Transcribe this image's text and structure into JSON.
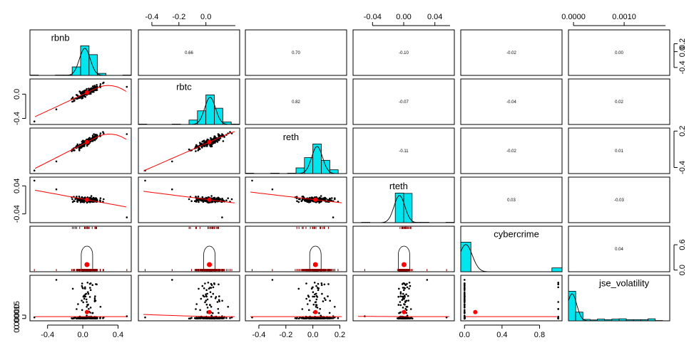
{
  "chart_data": {
    "type": "scatter",
    "subtype": "pairs-panels (scatterplot matrix)",
    "variables": [
      "rbnb",
      "rbtc",
      "reth",
      "rteth",
      "cybercrime",
      "jse_volatility"
    ],
    "correlations_upper": [
      {
        "row": "rbnb",
        "col": "rbtc",
        "r": "0.66"
      },
      {
        "row": "rbnb",
        "col": "reth",
        "r": "0.70"
      },
      {
        "row": "rbnb",
        "col": "rteth",
        "r": "-0.10"
      },
      {
        "row": "rbnb",
        "col": "cybercrime",
        "r": "-0.02"
      },
      {
        "row": "rbnb",
        "col": "jse_volatility",
        "r": "0.00"
      },
      {
        "row": "rbtc",
        "col": "reth",
        "r": "0.82"
      },
      {
        "row": "rbtc",
        "col": "rteth",
        "r": "-0.07"
      },
      {
        "row": "rbtc",
        "col": "cybercrime",
        "r": "-0.04"
      },
      {
        "row": "rbtc",
        "col": "jse_volatility",
        "r": "0.02"
      },
      {
        "row": "reth",
        "col": "rteth",
        "r": "-0.11"
      },
      {
        "row": "reth",
        "col": "cybercrime",
        "r": "-0.02"
      },
      {
        "row": "reth",
        "col": "jse_volatility",
        "r": "0.01"
      },
      {
        "row": "rteth",
        "col": "cybercrime",
        "r": "0.03"
      },
      {
        "row": "rteth",
        "col": "jse_volatility",
        "r": "-0.03"
      },
      {
        "row": "cybercrime",
        "col": "jse_volatility",
        "r": "0.04"
      }
    ],
    "axes": {
      "top": [
        {
          "col": 1,
          "ticks": [
            "-0.4",
            "-0.2",
            "0.0"
          ],
          "values": [
            -0.4,
            -0.2,
            0.0
          ]
        },
        {
          "col": 3,
          "ticks": [
            "-0.04",
            "0.00",
            "0.04"
          ],
          "values": [
            -0.04,
            0.0,
            0.04
          ]
        },
        {
          "col": 5,
          "ticks": [
            "0.0000",
            "0.0010"
          ],
          "values": [
            0.0,
            0.001
          ]
        }
      ],
      "bottom": [
        {
          "col": 0,
          "ticks": [
            "-0.4",
            "0.0",
            "0.4"
          ],
          "values": [
            -0.4,
            0.0,
            0.4
          ]
        },
        {
          "col": 2,
          "ticks": [
            "-0.4",
            "-0.2",
            "0.0",
            "0.2"
          ],
          "values": [
            -0.4,
            -0.2,
            0.0,
            0.2
          ]
        },
        {
          "col": 4,
          "ticks": [
            "0.0",
            "0.4",
            "0.8"
          ],
          "values": [
            0.0,
            0.4,
            0.8
          ]
        }
      ],
      "left": [
        {
          "row": 1,
          "ticks": [
            "-0.4",
            "0.0"
          ],
          "values": [
            -0.4,
            0.0
          ]
        },
        {
          "row": 3,
          "ticks": [
            "-0.04",
            "0.04"
          ],
          "values": [
            -0.04,
            0.04
          ]
        },
        {
          "row": 5,
          "ticks": [
            "0.00000",
            "0.00015"
          ],
          "values": [
            0.0,
            0.00015
          ]
        }
      ],
      "right": [
        {
          "row": 0,
          "ticks": [
            "-0.4",
            "0.0",
            "0.2"
          ],
          "values": [
            -0.4,
            0.0,
            0.2
          ]
        },
        {
          "row": 2,
          "ticks": [
            "-0.4",
            "0.2"
          ],
          "values": [
            -0.4,
            0.2
          ]
        },
        {
          "row": 4,
          "ticks": [
            "0.0",
            "0.6"
          ],
          "values": [
            0.0,
            0.6
          ]
        }
      ]
    },
    "ranges": {
      "rbnb": [
        -0.6,
        0.55
      ],
      "rbtc": [
        -0.5,
        0.25
      ],
      "reth": [
        -0.5,
        0.25
      ],
      "rteth": [
        -0.065,
        0.065
      ],
      "cybercrime": [
        -0.04,
        1.04
      ],
      "jse_volatility": [
        -0.0001,
        0.0019
      ]
    },
    "hist_bars_color": "#00e5ee",
    "lowess_color": "#ff0000",
    "rug_color": "#8b0000"
  }
}
